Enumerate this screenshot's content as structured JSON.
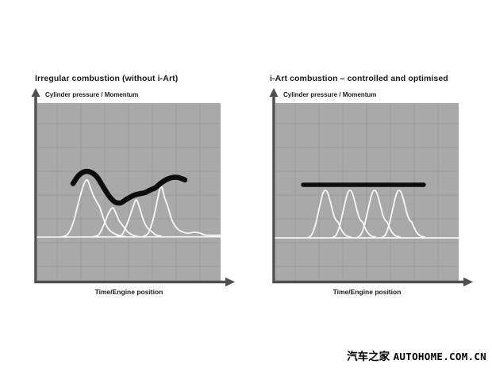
{
  "style": {
    "page_bg": "#ffffff",
    "plot_bg": "#a9a9a9",
    "grid_color": "#9c9c9c",
    "axis_color": "#4f4f4f",
    "curve_color": "#f8f8f8",
    "momentum_color": "#0d0d0d",
    "text_color": "#1a1a1a"
  },
  "watermark": {
    "cn": "汽车之家",
    "en": "AUTOHOME.COM.CN"
  },
  "chart_data": [
    {
      "type": "line",
      "title": "Irregular combustion (without i-Art)",
      "ylabel": "Cylinder pressure / Momentum",
      "xlabel": "Time/Engine position",
      "x_range": [
        0,
        100
      ],
      "y_range": [
        0,
        100
      ],
      "grid": true,
      "legend": "none",
      "series": [
        {
          "name": "baseline",
          "color": "#f8f8f8",
          "width": 1.6,
          "points": [
            [
              0,
              24.2
            ],
            [
              100,
              24.4
            ]
          ]
        },
        {
          "name": "combustion-pulse-1",
          "color": "#f8f8f8",
          "width": 1.8,
          "points": [
            [
              13,
              24.3
            ],
            [
              16.5,
              25.8
            ],
            [
              19.5,
              32
            ],
            [
              22.5,
              44
            ],
            [
              25.3,
              53.8
            ],
            [
              27.3,
              56.5
            ],
            [
              29.2,
              51.5
            ],
            [
              30.7,
              47.5
            ],
            [
              32.5,
              44
            ],
            [
              34.2,
              40.8
            ],
            [
              36,
              35
            ],
            [
              37.8,
              30.5
            ],
            [
              40.3,
              27.3
            ],
            [
              44.6,
              25.1
            ],
            [
              48,
              24.6
            ]
          ]
        },
        {
          "name": "combustion-pulse-2",
          "color": "#f8f8f8",
          "width": 1.8,
          "points": [
            [
              30.5,
              24.5
            ],
            [
              33.5,
              25.6
            ],
            [
              36,
              30.5
            ],
            [
              38.8,
              37.5
            ],
            [
              41.1,
              40.8
            ],
            [
              43,
              37.5
            ],
            [
              44.6,
              33.6
            ],
            [
              46.8,
              30.5
            ],
            [
              49.5,
              27
            ],
            [
              52.5,
              25.2
            ],
            [
              55.5,
              24.5
            ]
          ]
        },
        {
          "name": "combustion-pulse-3",
          "color": "#f8f8f8",
          "width": 1.8,
          "points": [
            [
              43.5,
              24.5
            ],
            [
              46.5,
              26
            ],
            [
              49.5,
              33
            ],
            [
              52.3,
              41.5
            ],
            [
              54.1,
              45.3
            ],
            [
              56.2,
              39.5
            ],
            [
              58,
              33.5
            ],
            [
              60.2,
              29.3
            ],
            [
              62.5,
              27.3
            ],
            [
              64.5,
              25.6
            ],
            [
              67.5,
              24.8
            ]
          ]
        },
        {
          "name": "combustion-pulse-4",
          "color": "#f8f8f8",
          "width": 1.8,
          "points": [
            [
              57.5,
              24.5
            ],
            [
              60.5,
              26.5
            ],
            [
              63,
              33.5
            ],
            [
              65.5,
              45
            ],
            [
              67.5,
              52.9
            ],
            [
              69.5,
              46.5
            ],
            [
              71.4,
              40.8
            ],
            [
              73.2,
              34.5
            ],
            [
              74.8,
              31.2
            ],
            [
              76.8,
              28.6
            ],
            [
              79.2,
              27.2
            ],
            [
              82,
              26.4
            ],
            [
              85.5,
              27
            ],
            [
              88.5,
              26.6
            ],
            [
              92,
              25.4
            ],
            [
              100,
              25.3
            ]
          ]
        },
        {
          "name": "momentum-trace-irregular",
          "color": "#0d0d0d",
          "width": 6.5,
          "points": [
            [
              19.5,
              54.5
            ],
            [
              22.5,
              59
            ],
            [
              26,
              61.3
            ],
            [
              29,
              61
            ],
            [
              32.5,
              58.3
            ],
            [
              36,
              52.5
            ],
            [
              39.5,
              47
            ],
            [
              42.5,
              44
            ],
            [
              45.5,
              43.6
            ],
            [
              48.5,
              45.5
            ],
            [
              52.5,
              47.8
            ],
            [
              56,
              48.8
            ],
            [
              58.5,
              49.3
            ],
            [
              61.5,
              50.8
            ],
            [
              64.5,
              52.2
            ],
            [
              67.5,
              54.8
            ],
            [
              70.5,
              56.8
            ],
            [
              73.5,
              57.9
            ],
            [
              76.5,
              58
            ],
            [
              79,
              57.2
            ],
            [
              80.5,
              56.6
            ]
          ]
        }
      ]
    },
    {
      "type": "line",
      "title": "i-Art combustion – controlled and optimised",
      "ylabel": "Cylinder pressure / Momentum",
      "xlabel": "Time/Engine position",
      "x_range": [
        0,
        100
      ],
      "y_range": [
        0,
        100
      ],
      "grid": true,
      "legend": "none",
      "series": [
        {
          "name": "baseline",
          "color": "#f8f8f8",
          "width": 1.6,
          "points": [
            [
              0,
              23.8
            ],
            [
              100,
              23.8
            ]
          ]
        },
        {
          "name": "combustion-pulse-1",
          "color": "#f8f8f8",
          "width": 1.8,
          "points": [
            [
              17.8,
              24
            ],
            [
              19.8,
              25.5
            ],
            [
              21.8,
              31
            ],
            [
              23.8,
              40
            ],
            [
              25.8,
              48.5
            ],
            [
              27.3,
              50.7
            ],
            [
              28.8,
              48.5
            ],
            [
              30.5,
              42
            ],
            [
              31.9,
              36.5
            ],
            [
              33.1,
              33.8
            ],
            [
              34.3,
              32.5
            ],
            [
              35.3,
              30
            ],
            [
              36.8,
              27
            ],
            [
              38.8,
              25
            ],
            [
              41.3,
              24.2
            ]
          ]
        },
        {
          "name": "combustion-pulse-2",
          "color": "#f8f8f8",
          "width": 1.8,
          "points": [
            [
              31.2,
              24
            ],
            [
              33.2,
              25.5
            ],
            [
              35.2,
              31
            ],
            [
              37.2,
              40
            ],
            [
              39.2,
              48.5
            ],
            [
              40.7,
              50.7
            ],
            [
              42.2,
              48.5
            ],
            [
              43.9,
              42
            ],
            [
              45.3,
              36.5
            ],
            [
              46.5,
              33.8
            ],
            [
              47.7,
              32.5
            ],
            [
              48.7,
              30
            ],
            [
              50.2,
              27
            ],
            [
              52.2,
              25
            ],
            [
              54.7,
              24.2
            ]
          ]
        },
        {
          "name": "combustion-pulse-3",
          "color": "#f8f8f8",
          "width": 1.8,
          "points": [
            [
              44.6,
              24
            ],
            [
              46.6,
              25.5
            ],
            [
              48.6,
              31
            ],
            [
              50.6,
              40
            ],
            [
              52.6,
              48.5
            ],
            [
              54.1,
              50.7
            ],
            [
              55.6,
              48.5
            ],
            [
              57.3,
              42
            ],
            [
              58.7,
              36.5
            ],
            [
              59.9,
              33.8
            ],
            [
              61.1,
              32.5
            ],
            [
              62.1,
              30
            ],
            [
              63.6,
              27
            ],
            [
              65.6,
              25
            ],
            [
              68.1,
              24.2
            ]
          ]
        },
        {
          "name": "combustion-pulse-4",
          "color": "#f8f8f8",
          "width": 1.8,
          "points": [
            [
              58,
              24
            ],
            [
              60,
              25.5
            ],
            [
              62,
              31
            ],
            [
              64,
              40
            ],
            [
              66,
              48.5
            ],
            [
              67.5,
              50.7
            ],
            [
              69,
              48.5
            ],
            [
              70.7,
              42
            ],
            [
              72.1,
              36.5
            ],
            [
              73.3,
              33.8
            ],
            [
              74.5,
              32.5
            ],
            [
              75.5,
              30
            ],
            [
              77,
              27
            ],
            [
              79,
              25
            ],
            [
              81.5,
              24.2
            ]
          ]
        },
        {
          "name": "momentum-trace-controlled",
          "color": "#0d0d0d",
          "width": 5.5,
          "points": [
            [
              15.2,
              53.8
            ],
            [
              80.9,
              53.8
            ]
          ]
        }
      ]
    }
  ]
}
